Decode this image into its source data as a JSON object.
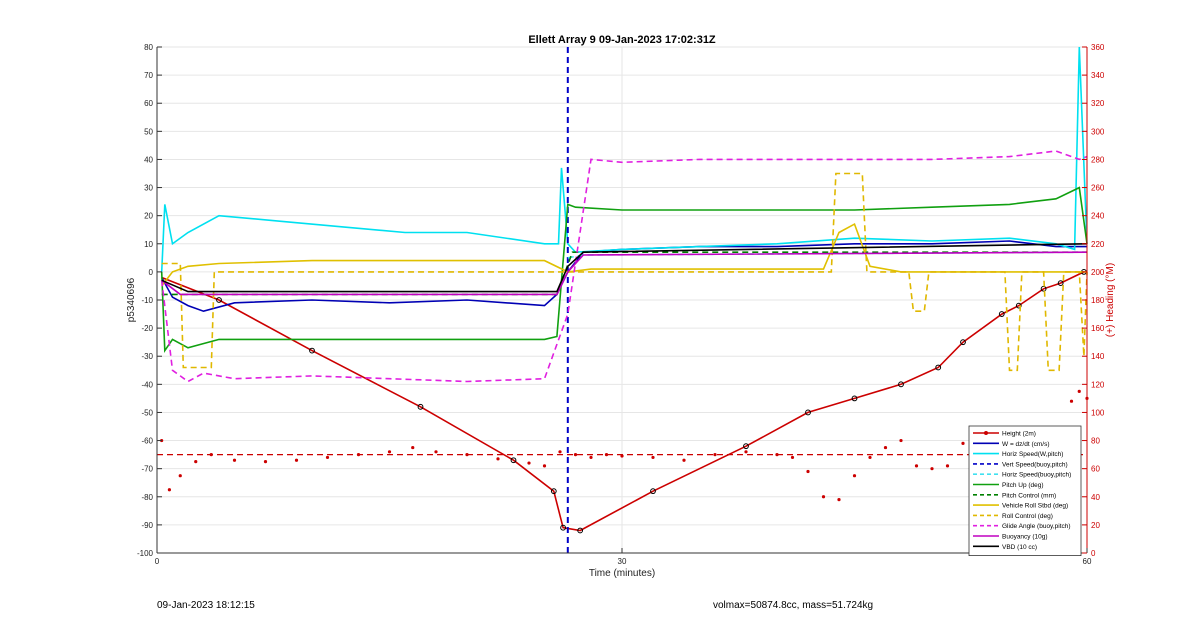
{
  "chart_data": {
    "type": "line",
    "title": "Ellett Array 9 09-Jan-2023 17:02:31Z",
    "xlabel": "Time (minutes)",
    "ylabel_left": "p5340696",
    "ylabel_right": "(+) Heading (°M)",
    "xlim": [
      0,
      60
    ],
    "ylim_left": [
      -100,
      80
    ],
    "ylim_right": [
      0,
      360
    ],
    "x_ticks": [
      0,
      30,
      60
    ],
    "y_ticks_left": [
      -100,
      -90,
      -80,
      -70,
      -60,
      -50,
      -40,
      -30,
      -20,
      -10,
      0,
      10,
      20,
      30,
      40,
      50,
      60,
      70,
      80
    ],
    "y_ticks_right": [
      0,
      20,
      40,
      60,
      80,
      100,
      120,
      140,
      160,
      180,
      200,
      220,
      240,
      260,
      280,
      300,
      320,
      340,
      360
    ],
    "grid": true,
    "legend_position": "bottom-right",
    "vertical_markers": [
      26.5
    ],
    "heading_reference": 70,
    "series": [
      {
        "name": "Height (2m)",
        "color": "#cc0000",
        "style": "solid-markers",
        "x": [
          0.3,
          4,
          10,
          17,
          23,
          25.6,
          26.2,
          27.3,
          32,
          38,
          42,
          45,
          48,
          50.4,
          52,
          54.5,
          55.6,
          57.2,
          58.3,
          59.8
        ],
        "y": [
          -2,
          -10,
          -28,
          -48,
          -67,
          -78,
          -91,
          -92,
          -78,
          -62,
          -50,
          -45,
          -40,
          -34,
          -25,
          -15,
          -12,
          -6,
          -4,
          0
        ]
      },
      {
        "name": "W = dz/dt (cm/s)",
        "color": "#0000b4",
        "style": "solid",
        "x": [
          0.3,
          1,
          2,
          3,
          5,
          10,
          15,
          20,
          25,
          25.8,
          26.5,
          27.5,
          30,
          35,
          40,
          45,
          50,
          55,
          58,
          59.5,
          60
        ],
        "y": [
          -2,
          -9,
          -12,
          -14,
          -11,
          -10,
          -11,
          -10,
          -12,
          -8,
          0,
          7,
          8,
          9,
          9,
          10,
          10,
          11,
          9,
          9,
          9
        ]
      },
      {
        "name": "Horiz Speed(W,pitch)",
        "color": "#00e0f0",
        "style": "solid",
        "x": [
          0.3,
          0.5,
          1,
          2,
          4,
          8,
          12,
          16,
          20,
          25,
          25.9,
          26.1,
          26.5,
          27,
          30,
          35,
          40,
          45,
          50,
          55,
          58,
          59.2,
          59.5,
          60
        ],
        "y": [
          0,
          24,
          10,
          14,
          20,
          18,
          16,
          14,
          14,
          10,
          10,
          37,
          10,
          7,
          8,
          9,
          10,
          12,
          11,
          12,
          10,
          8,
          80,
          10
        ]
      },
      {
        "name": "Vert Speed(buoy,pitch)",
        "color": "#0000c8",
        "style": "dashed",
        "x": [
          26.5,
          26.5
        ],
        "y": [
          -100,
          80
        ]
      },
      {
        "name": "Horiz Speed(buoy,pitch)",
        "color": "#40e0f0",
        "style": "dashed",
        "x": [
          26.5,
          27.5,
          60
        ],
        "y": [
          5,
          6,
          7
        ]
      },
      {
        "name": "Pitch Up (deg)",
        "color": "#10a010",
        "style": "solid",
        "x": [
          0.3,
          0.5,
          1,
          2,
          4,
          10,
          15,
          20,
          25,
          25.8,
          26.5,
          27,
          30,
          35,
          40,
          45,
          50,
          55,
          58,
          59.5,
          60
        ],
        "y": [
          0,
          -28,
          -24,
          -27,
          -24,
          -24,
          -24,
          -24,
          -24,
          -23,
          24,
          23,
          22,
          22,
          22,
          22,
          23,
          24,
          26,
          30,
          10
        ]
      },
      {
        "name": "Pitch Control (mm)",
        "color": "#008000",
        "style": "dashed",
        "x": [
          0.3,
          25.8,
          26.8,
          60
        ],
        "y": [
          -8,
          -8,
          7,
          7
        ]
      },
      {
        "name": "Vehicle Roll Stbd (deg)",
        "color": "#e0c000",
        "style": "solid",
        "x": [
          0.3,
          1,
          2,
          4,
          10,
          20,
          25,
          26.5,
          28,
          35,
          40,
          43,
          44,
          45,
          46,
          48,
          50,
          52,
          55,
          58,
          60
        ],
        "y": [
          -5,
          0,
          2,
          3,
          4,
          4,
          4,
          0,
          1,
          1,
          1,
          1,
          14,
          17,
          2,
          0,
          0,
          0,
          0,
          0,
          0
        ]
      },
      {
        "name": "Roll Control (deg)",
        "color": "#e0b800",
        "style": "dashed",
        "x": [
          0.3,
          1.5,
          1.7,
          3.5,
          3.7,
          26,
          26.5,
          43.5,
          43.8,
          45.5,
          45.8,
          48.5,
          48.8,
          49.5,
          49.8,
          54.7,
          55,
          55.5,
          55.8,
          57.2,
          57.5,
          58.2,
          58.5,
          59.5,
          59.8,
          60
        ],
        "y": [
          3,
          3,
          -34,
          -34,
          0,
          0,
          0,
          0,
          35,
          35,
          0,
          0,
          -14,
          -14,
          0,
          0,
          -35,
          -35,
          0,
          0,
          -35,
          -35,
          0,
          0,
          -30,
          0
        ]
      },
      {
        "name": "Glide Angle (buoy,pitch)",
        "color": "#e020e0",
        "style": "dashed",
        "x": [
          0.3,
          1,
          2,
          3,
          5,
          10,
          15,
          20,
          25,
          26.5,
          28,
          30,
          35,
          40,
          45,
          50,
          55,
          58,
          59.5,
          60
        ],
        "y": [
          -3,
          -35,
          -39,
          -36,
          -38,
          -37,
          -38,
          -39,
          -38,
          -15,
          40,
          39,
          40,
          40,
          40,
          40,
          41,
          43,
          40,
          41
        ]
      },
      {
        "name": "Buoyancy (10g)",
        "color": "#c000c0",
        "style": "solid",
        "x": [
          0.3,
          1.5,
          25.8,
          26.5,
          27.5,
          60
        ],
        "y": [
          -3,
          -8,
          -8,
          0,
          6,
          7
        ]
      },
      {
        "name": "VBD (10 cc)",
        "color": "#000000",
        "style": "solid",
        "x": [
          0.3,
          2,
          25.8,
          26.5,
          27.5,
          60
        ],
        "y": [
          -3,
          -7,
          -7,
          2,
          7,
          10
        ]
      }
    ],
    "heading_series": {
      "color": "#cc0000",
      "x": [
        0.3,
        0.8,
        1.5,
        2.5,
        3.5,
        5,
        7,
        9,
        11,
        13,
        15,
        16.5,
        18,
        20,
        22,
        24,
        25,
        26,
        27,
        28,
        29,
        30,
        32,
        34,
        36,
        38,
        40,
        41,
        42,
        43,
        44,
        45,
        46,
        47,
        48,
        49,
        50,
        51,
        52,
        53,
        54,
        55,
        56,
        57,
        58,
        59,
        59.5,
        60
      ],
      "y": [
        80,
        45,
        55,
        65,
        70,
        66,
        65,
        66,
        68,
        70,
        72,
        75,
        72,
        70,
        67,
        64,
        62,
        72,
        70,
        68,
        70,
        69,
        68,
        66,
        70,
        72,
        70,
        68,
        58,
        40,
        38,
        55,
        68,
        75,
        80,
        62,
        60,
        62,
        78,
        88,
        70,
        62,
        68,
        72,
        88,
        108,
        115,
        110
      ]
    }
  },
  "footer": {
    "left": "09-Jan-2023 18:12:15",
    "right": "volmax=50874.8cc, mass=51.724kg"
  }
}
